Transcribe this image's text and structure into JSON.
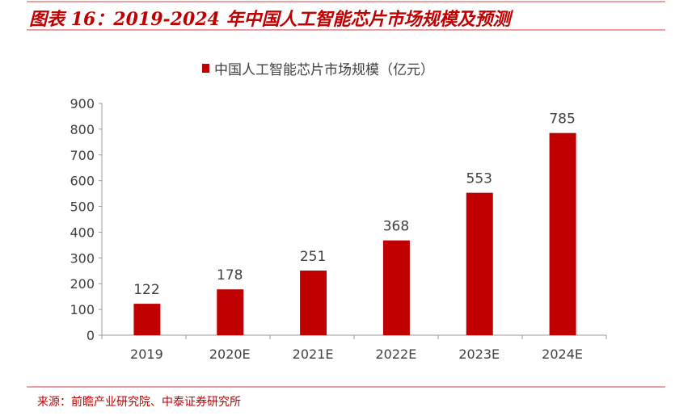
{
  "header": {
    "title": "图表 16：2019-2024 年中国人工智能芯片市场规模及预测"
  },
  "footer": {
    "source": "来源：前瞻产业研究院、中泰证券研究所"
  },
  "colors": {
    "bar": "#c00000",
    "accent": "#c00000"
  },
  "chart_data": {
    "type": "bar",
    "title": "",
    "categories": [
      "2019",
      "2020E",
      "2021E",
      "2022E",
      "2023E",
      "2024E"
    ],
    "series": [
      {
        "name": "中国人工智能芯片市场规模（亿元）",
        "values": [
          122,
          178,
          251,
          368,
          553,
          785
        ]
      }
    ],
    "yticks": [
      "0",
      "100",
      "200",
      "300",
      "400",
      "500",
      "600",
      "700",
      "800",
      "900"
    ],
    "ylim": [
      0,
      900
    ],
    "xlabel": "",
    "ylabel": "",
    "legend": "top-center",
    "grid": false
  }
}
